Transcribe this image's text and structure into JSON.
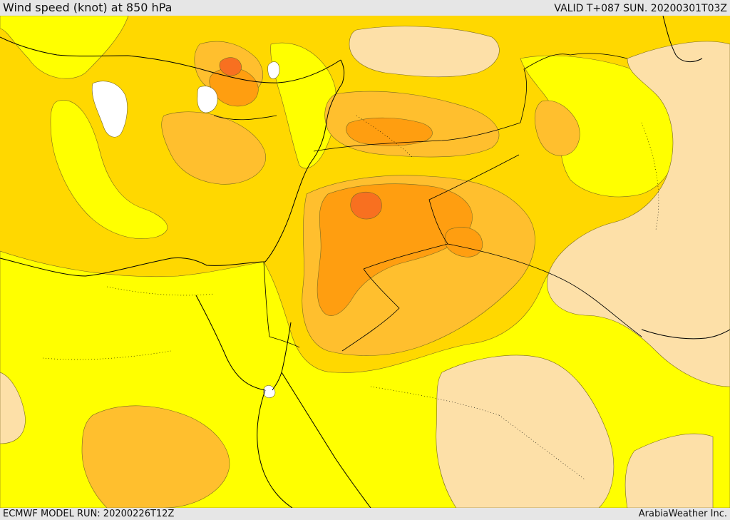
{
  "header": {
    "title": "Wind speed (knot) at 850 hPa",
    "valid": "VALID T+087 SUN. 20200301T03Z"
  },
  "footer": {
    "model_run": "ECMWF MODEL RUN: 20200226T12Z",
    "credit": "ArabiaWeather Inc."
  },
  "map": {
    "colors": {
      "calm_white": "#ffffff",
      "light_tan": "#fde0a8",
      "yellow": "#ffff00",
      "gold": "#ffd800",
      "light_orange": "#ffbf2e",
      "orange": "#ff9e10",
      "dark_orange": "#f87020"
    }
  }
}
